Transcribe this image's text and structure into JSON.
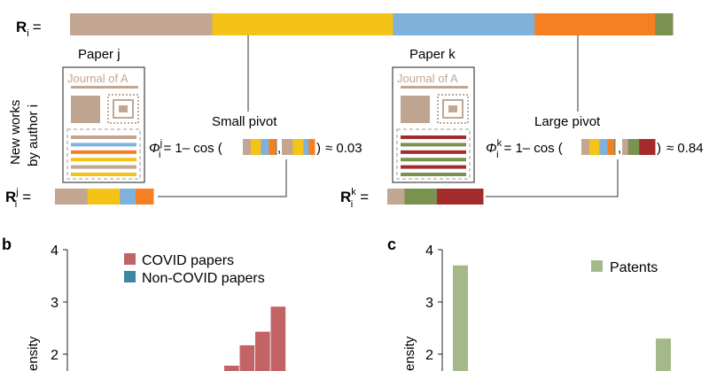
{
  "panel_a": {
    "r_i_label": "R",
    "r_i_sub": "i",
    "equals": "=",
    "segment_colors": [
      "#c2a692",
      "#f5c218",
      "#7fb2da",
      "#f58023",
      "#7a9150"
    ],
    "segment_fractions": [
      0.236,
      0.3,
      0.235,
      0.2,
      0.029
    ],
    "paper_j": "Paper j",
    "paper_k": "Paper k",
    "journal_text": "Journal of A",
    "side_line1": "New works",
    "side_line2": "by author i",
    "small_pivot": "Small pivot",
    "large_pivot": "Large pivot",
    "phi_symbol": "Φ",
    "phi_j_sup": "j",
    "phi_k_sup": "k",
    "phi_sub": "i",
    "formula_mid": "= 1– cos (",
    "comma": ",",
    "close_paren": ")",
    "value_j": "≈ 0.03",
    "value_k": "≈ 0.84",
    "r_j_sup": "j",
    "r_k_sup": "k",
    "r_j_colors": [
      "#c2a692",
      "#f5c218",
      "#7fb2da",
      "#f58023"
    ],
    "r_j_fractions": [
      0.33,
      0.33,
      0.16,
      0.18
    ],
    "r_k_colors": [
      "#c2a692",
      "#7a9150",
      "#a32b2b"
    ],
    "r_k_fractions": [
      0.18,
      0.34,
      0.48
    ],
    "lines_j_colors": [
      "#c2a692",
      "#7fb2da",
      "#f58023",
      "#f5c218",
      "#c2a692",
      "#f5c218"
    ],
    "lines_k_colors": [
      "#a32b2b",
      "#7a9150",
      "#a32b2b",
      "#7a9150",
      "#a32b2b",
      "#7a9150"
    ]
  },
  "panel_b": {
    "label": "b",
    "legend": [
      {
        "name": "COVID papers",
        "color": "#c26366"
      },
      {
        "name": "Non-COVID papers",
        "color": "#3f86a1"
      }
    ],
    "ylabel": "ensity",
    "chart_data": {
      "type": "bar",
      "ylim": [
        1.5,
        4
      ],
      "yticks": [
        "4",
        "3",
        "2"
      ],
      "series": [
        {
          "name": "COVID papers",
          "values": [
            1.78,
            2.17,
            2.43,
            2.91
          ]
        }
      ]
    }
  },
  "panel_c": {
    "label": "c",
    "legend": [
      {
        "name": "Patents",
        "color": "#a5b88a"
      }
    ],
    "ylabel": "ensity",
    "chart_data": {
      "type": "bar",
      "ylim": [
        1.5,
        4
      ],
      "yticks": [
        "4",
        "3",
        "2"
      ],
      "series": [
        {
          "name": "Patents",
          "values": [
            3.7,
            2.3
          ]
        }
      ]
    }
  }
}
